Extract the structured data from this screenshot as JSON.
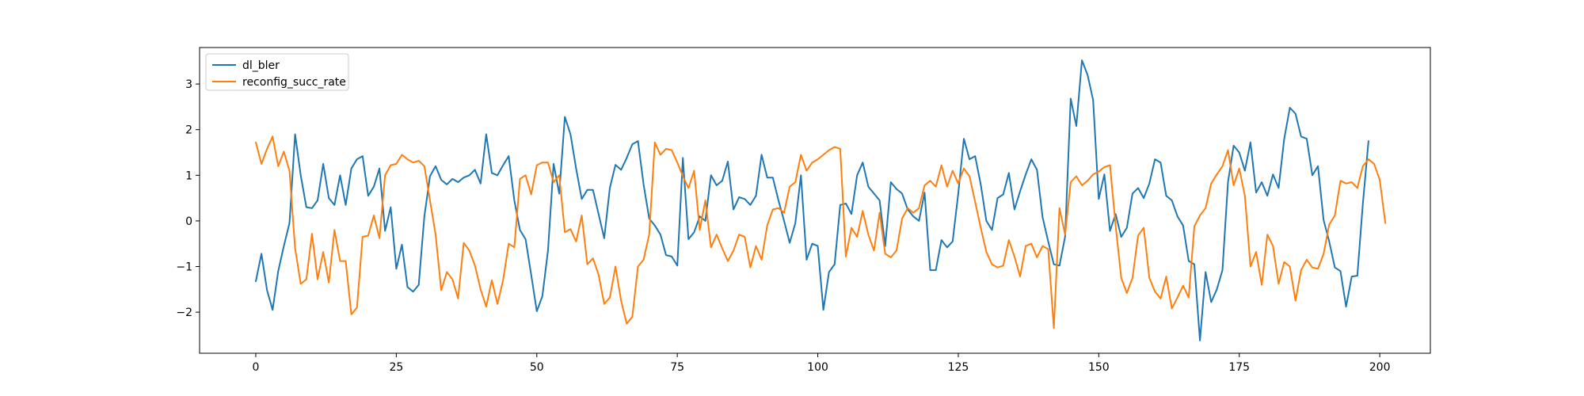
{
  "chart_data": {
    "type": "line",
    "title": "",
    "xlabel": "",
    "ylabel": "",
    "xlim": [
      -10,
      209
    ],
    "ylim": [
      -2.9,
      3.8
    ],
    "xticks": [
      0,
      25,
      50,
      75,
      100,
      125,
      150,
      175,
      200
    ],
    "yticks": [
      -2,
      -1,
      0,
      1,
      2,
      3
    ],
    "grid": false,
    "legend": "top-left",
    "x_start": 0,
    "x_step": 1,
    "series": [
      {
        "name": "dl_bler",
        "color": "#1f77b4",
        "values": [
          -1.32,
          -0.72,
          -1.52,
          -1.95,
          -1.1,
          -0.55,
          -0.05,
          1.9,
          1.0,
          0.3,
          0.28,
          0.45,
          1.25,
          0.5,
          0.35,
          1.0,
          0.35,
          1.15,
          1.35,
          1.42,
          0.55,
          0.75,
          1.15,
          -0.22,
          0.3,
          -1.05,
          -0.52,
          -1.45,
          -1.55,
          -1.4,
          0.1,
          0.98,
          1.2,
          0.9,
          0.8,
          0.92,
          0.85,
          0.95,
          1.0,
          1.12,
          0.82,
          1.9,
          1.05,
          1.0,
          1.22,
          1.42,
          0.45,
          -0.2,
          -0.4,
          -1.18,
          -1.98,
          -1.65,
          -0.65,
          1.25,
          0.6,
          2.28,
          1.9,
          1.15,
          0.48,
          0.68,
          0.68,
          0.15,
          -0.38,
          0.72,
          1.23,
          1.12,
          1.38,
          1.68,
          1.75,
          0.8,
          0.05,
          -0.1,
          -0.3,
          -0.75,
          -0.78,
          -0.98,
          1.38,
          -0.4,
          -0.25,
          0.1,
          0.0,
          1.0,
          0.78,
          0.88,
          1.3,
          0.25,
          0.52,
          0.48,
          0.35,
          0.55,
          1.45,
          0.95,
          0.95,
          0.45,
          0.0,
          -0.48,
          -0.05,
          1.0,
          -0.85,
          -0.5,
          -0.55,
          -1.95,
          -1.12,
          -0.95,
          0.35,
          0.38,
          0.15,
          1.0,
          1.28,
          0.75,
          0.6,
          0.45,
          -0.55,
          0.85,
          0.7,
          0.6,
          0.25,
          0.1,
          0.0,
          0.62,
          -1.08,
          -1.08,
          -0.42,
          -0.58,
          -0.45,
          0.6,
          1.8,
          1.35,
          1.42,
          0.8,
          0.0,
          -0.2,
          0.5,
          0.58,
          1.05,
          0.25,
          0.65,
          1.02,
          1.35,
          1.12,
          0.08,
          -0.45,
          -0.95,
          -0.98,
          -0.35,
          2.68,
          2.08,
          3.52,
          3.2,
          2.65,
          0.48,
          1.02,
          -0.22,
          0.15,
          -0.35,
          -0.15,
          0.6,
          0.72,
          0.5,
          0.82,
          1.35,
          1.28,
          0.55,
          0.45,
          0.1,
          -0.1,
          -0.88,
          -0.95,
          -2.62,
          -1.12,
          -1.78,
          -1.5,
          -1.08,
          0.85,
          1.65,
          1.5,
          1.1,
          1.72,
          0.62,
          0.85,
          0.55,
          1.02,
          0.72,
          1.8,
          2.48,
          2.35,
          1.85,
          1.8,
          1.0,
          1.2,
          0.02,
          -0.45,
          -1.02,
          -1.1,
          -1.88,
          -1.22,
          -1.2,
          0.38,
          1.75
        ]
      },
      {
        "name": "reconfig_succ_rate",
        "color": "#ff7f0e",
        "values": [
          1.72,
          1.25,
          1.58,
          1.85,
          1.2,
          1.52,
          1.1,
          -0.6,
          -1.38,
          -1.28,
          -0.28,
          -1.28,
          -0.68,
          -1.35,
          -0.2,
          -0.88,
          -0.88,
          -2.05,
          -1.9,
          -0.35,
          -0.32,
          0.12,
          -0.38,
          1.0,
          1.22,
          1.25,
          1.45,
          1.35,
          1.28,
          1.32,
          1.2,
          0.45,
          -0.3,
          -1.52,
          -1.12,
          -1.28,
          -1.7,
          -0.48,
          -0.65,
          -0.98,
          -1.5,
          -1.88,
          -1.3,
          -1.82,
          -1.3,
          -0.5,
          -0.58,
          0.92,
          1.0,
          0.58,
          1.22,
          1.28,
          1.28,
          0.85,
          1.0,
          -0.25,
          -0.18,
          -0.45,
          0.12,
          -0.95,
          -0.82,
          -1.18,
          -1.82,
          -1.68,
          -1.0,
          -1.75,
          -2.25,
          -2.1,
          -1.0,
          -0.85,
          -0.3,
          1.72,
          1.45,
          1.58,
          1.55,
          1.28,
          0.98,
          0.72,
          1.1,
          -0.2,
          0.45,
          -0.58,
          -0.3,
          -0.6,
          -0.88,
          -0.65,
          -0.3,
          -0.35,
          -1.02,
          -0.55,
          -0.85,
          -0.1,
          0.25,
          0.28,
          0.18,
          0.75,
          0.85,
          1.45,
          1.1,
          1.28,
          1.35,
          1.45,
          1.55,
          1.62,
          1.58,
          -0.78,
          -0.15,
          -0.35,
          0.22,
          -0.3,
          -0.65,
          0.18,
          -0.72,
          -0.8,
          -0.65,
          0.05,
          0.28,
          0.18,
          0.28,
          0.78,
          0.88,
          0.75,
          1.22,
          0.75,
          1.1,
          0.82,
          1.15,
          0.98,
          0.42,
          -0.15,
          -0.68,
          -0.95,
          -1.02,
          -0.98,
          -0.42,
          -0.78,
          -1.22,
          -0.55,
          -0.5,
          -0.8,
          -0.55,
          -0.62,
          -2.35,
          0.28,
          -0.3,
          0.85,
          0.98,
          0.78,
          0.88,
          1.02,
          1.08,
          1.18,
          1.22,
          -0.1,
          -1.25,
          -1.58,
          -1.25,
          -0.32,
          -0.15,
          -1.25,
          -1.55,
          -1.7,
          -1.22,
          -1.92,
          -1.68,
          -1.42,
          -1.68,
          -0.12,
          0.12,
          0.28,
          0.82,
          1.02,
          1.2,
          1.55,
          0.78,
          1.15,
          0.55,
          -1.0,
          -0.68,
          -1.4,
          -0.3,
          -0.55,
          -1.38,
          -0.9,
          -1.0,
          -1.75,
          -1.08,
          -0.85,
          -1.02,
          -1.05,
          -0.72,
          -0.08,
          0.12,
          0.88,
          0.82,
          0.85,
          0.72,
          1.2,
          1.35,
          1.25,
          0.9,
          -0.05
        ]
      }
    ]
  }
}
